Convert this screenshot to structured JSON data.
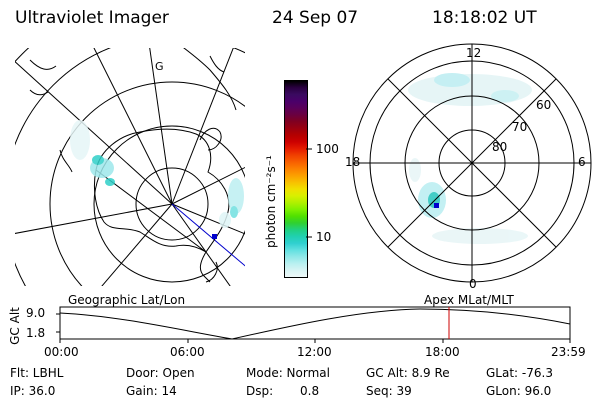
{
  "header": {
    "title": "Ultraviolet Imager",
    "date": "24 Sep 07",
    "time": "18:18:02 UT"
  },
  "geo_map": {
    "caption": "Geographic Lat/Lon",
    "meridian_label": "G"
  },
  "colorbar": {
    "unit_label": "photon cm⁻²s⁻¹",
    "ticks": [
      "100",
      "10"
    ],
    "colors": [
      "#000000",
      "#2a0040",
      "#3a0a60",
      "#4a006a",
      "#5a005a",
      "#6a0040",
      "#800020",
      "#9a0010",
      "#b40000",
      "#cc0000",
      "#e41a00",
      "#f04000",
      "#f86000",
      "#fc8000",
      "#fca000",
      "#f8c000",
      "#f0e000",
      "#d8f000",
      "#b0f000",
      "#80f000",
      "#50e000",
      "#30d030",
      "#20d080",
      "#20d0b0",
      "#30d0d0",
      "#60e0e0",
      "#90e8e8",
      "#b8f0f0",
      "#d8f4f4",
      "#eef8f8"
    ]
  },
  "polar_plot": {
    "caption": "Apex MLat/MLT",
    "mlt_labels": {
      "top": "12",
      "bottom": "0",
      "left": "18",
      "right": "6"
    },
    "lat_labels": [
      "60",
      "70",
      "80"
    ]
  },
  "timeline": {
    "y_axis_label": "GC Alt",
    "y_ticks": [
      "9.0",
      "1.8"
    ],
    "x_ticks": [
      "00:00",
      "06:00",
      "12:00",
      "18:00",
      "23:59"
    ],
    "current_time_marker_color": "#cc0000"
  },
  "status": {
    "flt": "Flt: LBHL",
    "ip": "IP: 36.0",
    "door": "Door: Open",
    "gain": "Gain: 14",
    "mode": "Mode: Normal",
    "dsp": "Dsp:",
    "dsp_value": "0.8",
    "gc_alt": "GC Alt: 8.9 Re",
    "seq": "Seq: 39",
    "glat": "GLat: -76.3",
    "glon": "GLon: 96.0"
  }
}
